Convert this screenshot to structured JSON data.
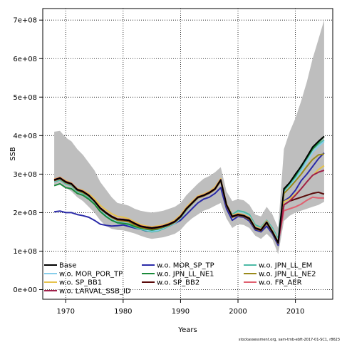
{
  "chart_data": {
    "type": "line",
    "xlabel": "Years",
    "ylabel": "SSB",
    "xlim": [
      1966,
      2016.5
    ],
    "ylim": [
      -25000000,
      730000000
    ],
    "xticks": [
      1970,
      1980,
      1990,
      2000,
      2010
    ],
    "yticks": [
      0,
      100000000,
      200000000,
      300000000,
      400000000,
      500000000,
      600000000,
      700000000
    ],
    "ytick_labels": [
      "0e+00",
      "1e+08",
      "2e+08",
      "3e+08",
      "4e+08",
      "5e+08",
      "6e+08",
      "7e+08"
    ],
    "grid": true,
    "legend_position": "bottom-inside",
    "footnote": "stockassessment.org, sam-tmb-ebft-2017-01-SC1, r8623",
    "x": [
      1968,
      1969,
      1970,
      1971,
      1972,
      1973,
      1974,
      1975,
      1976,
      1977,
      1978,
      1979,
      1980,
      1981,
      1982,
      1983,
      1984,
      1985,
      1986,
      1987,
      1988,
      1989,
      1990,
      1991,
      1992,
      1993,
      1994,
      1995,
      1996,
      1997,
      1998,
      1999,
      2000,
      2001,
      2002,
      2003,
      2004,
      2005,
      2006,
      2007,
      2008,
      2009,
      2010,
      2011,
      2012,
      2013,
      2014,
      2015
    ],
    "confidence_band": {
      "color": "#bebebe",
      "upper": [
        410,
        412,
        395,
        385,
        365,
        350,
        330,
        310,
        280,
        260,
        240,
        225,
        222,
        218,
        210,
        205,
        202,
        200,
        202,
        205,
        210,
        215,
        225,
        245,
        260,
        275,
        288,
        295,
        305,
        318,
        255,
        230,
        235,
        232,
        220,
        195,
        190,
        215,
        195,
        160,
        365,
        410,
        445,
        490,
        540,
        600,
        650,
        700
      ],
      "lower": [
        272,
        275,
        265,
        255,
        240,
        230,
        215,
        200,
        180,
        165,
        158,
        155,
        154,
        150,
        146,
        140,
        135,
        132,
        134,
        136,
        140,
        145,
        155,
        172,
        185,
        195,
        205,
        210,
        218,
        225,
        185,
        160,
        170,
        168,
        160,
        140,
        132,
        145,
        130,
        92,
        178,
        192,
        200,
        205,
        210,
        215,
        220,
        228
      ]
    },
    "series": [
      {
        "name": "Base",
        "color": "#000000",
        "values": [
          285,
          290,
          280,
          275,
          260,
          255,
          245,
          230,
          212,
          200,
          190,
          183,
          182,
          180,
          172,
          165,
          162,
          160,
          162,
          165,
          170,
          177,
          190,
          210,
          225,
          240,
          245,
          252,
          262,
          285,
          220,
          190,
          195,
          192,
          185,
          160,
          155,
          175,
          150,
          122,
          262,
          278,
          300,
          320,
          345,
          370,
          385,
          398
        ]
      },
      {
        "name": "w.o. MOR_SP_TP",
        "color": "#2a2aa8",
        "values": [
          202,
          204,
          200,
          200,
          195,
          192,
          188,
          180,
          170,
          167,
          165,
          166,
          168,
          164,
          160,
          157,
          152,
          152,
          155,
          160,
          165,
          172,
          180,
          195,
          210,
          225,
          235,
          240,
          250,
          265,
          210,
          180,
          190,
          188,
          178,
          155,
          150,
          165,
          145,
          115,
          230,
          240,
          258,
          283,
          300,
          320,
          340,
          355
        ]
      },
      {
        "name": "w.o. JPN_LL_EM",
        "color": "#4dbaa6",
        "values": [
          280,
          285,
          275,
          270,
          255,
          250,
          240,
          227,
          207,
          192,
          180,
          173,
          172,
          168,
          162,
          157,
          153,
          150,
          152,
          158,
          165,
          172,
          185,
          205,
          222,
          238,
          245,
          252,
          265,
          287,
          222,
          195,
          205,
          202,
          195,
          168,
          162,
          180,
          160,
          132,
          258,
          272,
          290,
          315,
          340,
          365,
          378,
          388
        ]
      },
      {
        "name": "w.o. MOR_POR_TP",
        "color": "#87ceeb",
        "values": [
          282,
          287,
          278,
          272,
          258,
          252,
          242,
          228,
          208,
          195,
          183,
          176,
          174,
          171,
          164,
          159,
          155,
          152,
          154,
          160,
          166,
          173,
          186,
          206,
          222,
          237,
          244,
          250,
          262,
          283,
          220,
          192,
          200,
          197,
          190,
          164,
          158,
          176,
          156,
          127,
          255,
          268,
          287,
          308,
          332,
          357,
          372,
          385
        ]
      },
      {
        "name": "w.o. JPN_LL_NE1",
        "color": "#1a8a3a",
        "values": [
          270,
          275,
          265,
          262,
          250,
          245,
          235,
          222,
          203,
          190,
          180,
          174,
          172,
          170,
          164,
          160,
          157,
          155,
          157,
          162,
          167,
          175,
          188,
          208,
          224,
          240,
          247,
          254,
          265,
          283,
          220,
          190,
          196,
          194,
          187,
          162,
          157,
          176,
          153,
          124,
          258,
          278,
          295,
          322,
          342,
          365,
          382,
          398
        ]
      },
      {
        "name": "w.o. JPN_LL_NE2",
        "color": "#9a8a1a",
        "values": [
          283,
          288,
          278,
          273,
          258,
          252,
          243,
          229,
          210,
          198,
          187,
          180,
          178,
          176,
          168,
          162,
          159,
          157,
          159,
          163,
          168,
          175,
          188,
          208,
          223,
          238,
          243,
          250,
          260,
          282,
          218,
          188,
          193,
          190,
          182,
          158,
          153,
          172,
          148,
          120,
          250,
          265,
          282,
          300,
          320,
          338,
          350,
          352
        ]
      },
      {
        "name": "w.o. SP_BB1",
        "color": "#e6c34d",
        "values": [
          287,
          292,
          283,
          277,
          262,
          258,
          249,
          236,
          219,
          207,
          197,
          190,
          188,
          184,
          176,
          169,
          165,
          163,
          165,
          168,
          173,
          181,
          194,
          214,
          229,
          243,
          248,
          255,
          266,
          288,
          223,
          193,
          198,
          195,
          188,
          163,
          158,
          178,
          153,
          125,
          228,
          236,
          248,
          262,
          280,
          296,
          312,
          322
        ]
      },
      {
        "name": "w.o. SP_BB2",
        "color": "#5a0a0a",
        "values": [
          284,
          289,
          279,
          274,
          259,
          254,
          244,
          230,
          211,
          199,
          189,
          182,
          181,
          179,
          171,
          164,
          161,
          159,
          161,
          164,
          169,
          176,
          189,
          209,
          224,
          239,
          244,
          251,
          261,
          284,
          219,
          189,
          194,
          191,
          184,
          159,
          154,
          174,
          149,
          121,
          220,
          230,
          235,
          240,
          245,
          250,
          253,
          248
        ]
      },
      {
        "name": "w.o. FR_AER",
        "color": "#e06070",
        "values": [
          286,
          291,
          281,
          276,
          261,
          256,
          246,
          231,
          213,
          201,
          191,
          184,
          183,
          181,
          173,
          166,
          163,
          161,
          163,
          166,
          171,
          178,
          191,
          211,
          226,
          241,
          246,
          253,
          263,
          286,
          221,
          191,
          196,
          193,
          186,
          161,
          156,
          176,
          151,
          123,
          205,
          210,
          215,
          222,
          232,
          240,
          238,
          238
        ]
      },
      {
        "name": "w.o. LARVAL_SSB_ID",
        "color": "#a0204a",
        "values": [
          285,
          290,
          280,
          275,
          260,
          255,
          245,
          230,
          212,
          200,
          190,
          183,
          182,
          180,
          172,
          165,
          162,
          160,
          162,
          165,
          170,
          177,
          190,
          210,
          225,
          240,
          245,
          252,
          262,
          285,
          220,
          190,
          195,
          192,
          185,
          160,
          155,
          175,
          150,
          122,
          220,
          230,
          245,
          262,
          280,
          297,
          305,
          310
        ]
      }
    ]
  }
}
